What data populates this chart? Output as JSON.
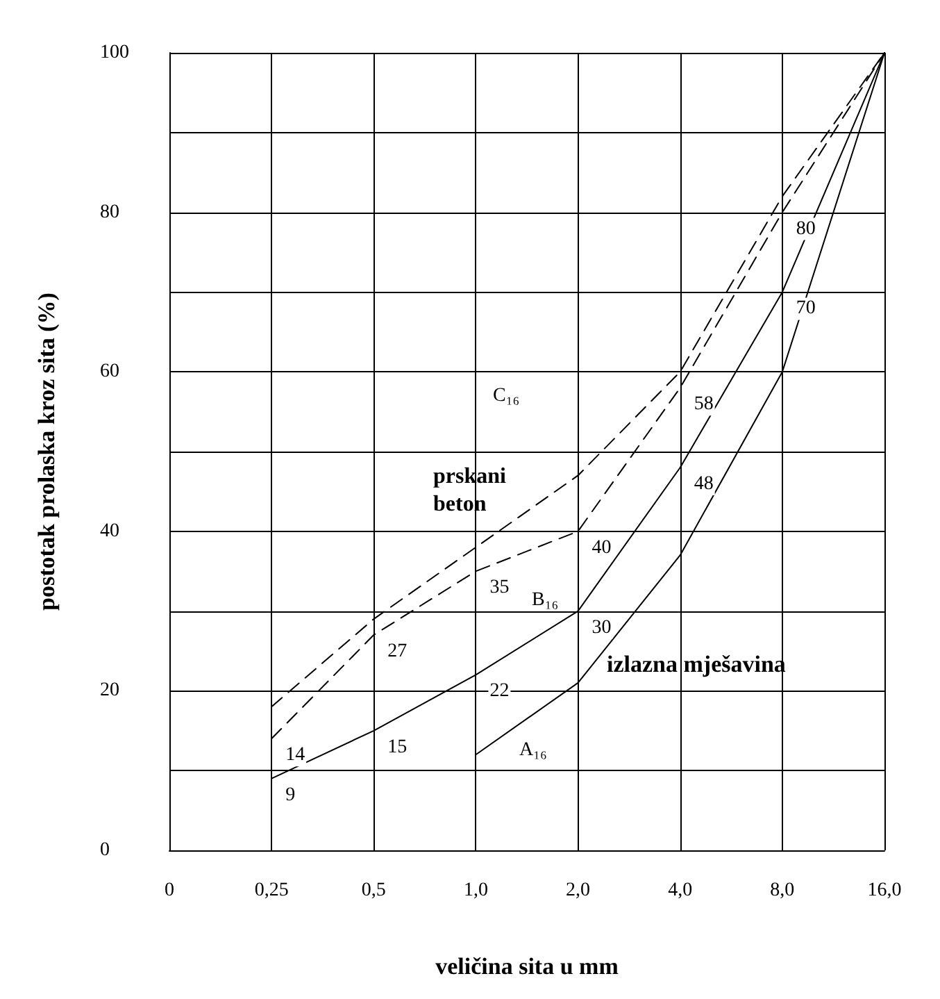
{
  "chart_data": {
    "type": "line",
    "xlabel": "veličina sita u mm",
    "ylabel": "postotak prolaska kroz sita (%)",
    "categories": [
      "0",
      "0,25",
      "0,5",
      "1,0",
      "2,0",
      "4,0",
      "8,0",
      "16,0"
    ],
    "ylim": [
      0,
      100
    ],
    "yticks": [
      0,
      {
        "value": 10,
        "label": null
      },
      20,
      {
        "value": 30,
        "label": null
      },
      40,
      {
        "value": 50,
        "label": null
      },
      60,
      {
        "value": 70,
        "label": null
      },
      80,
      {
        "value": 90,
        "label": null
      },
      100
    ],
    "grid": true,
    "marker": "none",
    "series": [
      {
        "color": "#000000",
        "line_style": "solid",
        "values": [
          null,
          null,
          null,
          12,
          21,
          37,
          60,
          100
        ]
      },
      {
        "color": "#000000",
        "line_style": "solid",
        "values": [
          null,
          9,
          15,
          22,
          30,
          48,
          70,
          100
        ],
        "value_labels": [
          null,
          "9",
          "15",
          "22",
          "30",
          "48",
          "70",
          null
        ]
      },
      {
        "color": "#000000",
        "line_style": "dashed",
        "values": [
          null,
          14,
          27,
          35,
          40,
          58,
          80,
          100
        ],
        "value_labels": [
          null,
          "14",
          "27",
          "35",
          "40",
          "58",
          "80",
          null
        ]
      },
      {
        "color": "#000000",
        "line_style": "dashed",
        "values": [
          null,
          18,
          29,
          38,
          47,
          60,
          82,
          100
        ]
      }
    ],
    "annotations": [
      "C₁₆",
      "B₁₆",
      "A₁₆",
      "prskani beton",
      "izlazna mješavina"
    ]
  }
}
